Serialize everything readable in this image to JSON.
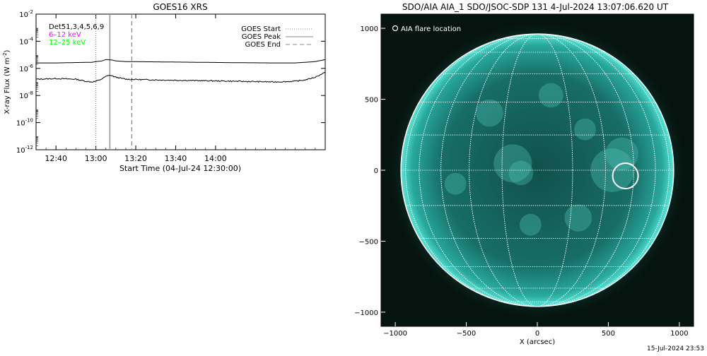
{
  "chart_data": [
    {
      "type": "line",
      "title": "GOES16 XRS",
      "xlabel": "Start Time (04-Jul-24 12:30:00)",
      "ylabel": "X-ray Flux (W m",
      "ylabel_sup": "-2",
      "ylabel_close": ")",
      "ylog": true,
      "ylim_exp": [
        -12,
        -2
      ],
      "yticks": [
        {
          "base": "10",
          "exp": "-2",
          "v": -2
        },
        {
          "base": "10",
          "exp": "-4",
          "v": -4
        },
        {
          "base": "10",
          "exp": "-6",
          "v": -6
        },
        {
          "base": "10",
          "exp": "-8",
          "v": -8
        },
        {
          "base": "10",
          "exp": "-10",
          "v": -10
        },
        {
          "base": "10",
          "exp": "-12",
          "v": -12
        }
      ],
      "xlim_minutes": [
        0,
        145
      ],
      "xticks": [
        {
          "label": "12:40",
          "m": 10
        },
        {
          "label": "13:00",
          "m": 30
        },
        {
          "label": "13:20",
          "m": 50
        },
        {
          "label": "13:40",
          "m": 70
        },
        {
          "label": "14:00",
          "m": 90
        }
      ],
      "legend_left": [
        {
          "text": "Det51,3,4,5,6,9",
          "color": "#000000"
        },
        {
          "text": "6–12 keV",
          "color": "#ff00ff"
        },
        {
          "text": "12–25 keV",
          "color": "#00ff00"
        }
      ],
      "legend_right": [
        {
          "text": "GOES Start",
          "style": "dotted",
          "m": 30
        },
        {
          "text": "GOES Peak",
          "style": "solid",
          "m": 37
        },
        {
          "text": "GOES End",
          "style": "dashed",
          "m": 48
        }
      ],
      "series": [
        {
          "band": "long",
          "t": [
            0,
            10,
            20,
            28,
            30,
            33,
            35,
            38,
            40,
            45,
            60,
            80,
            100,
            120,
            130,
            135,
            140,
            145
          ],
          "log_flux": [
            -5.6,
            -5.6,
            -5.57,
            -5.55,
            -5.5,
            -5.45,
            -5.35,
            -5.38,
            -5.45,
            -5.5,
            -5.52,
            -5.55,
            -5.58,
            -5.6,
            -5.6,
            -5.55,
            -5.5,
            -5.35
          ]
        },
        {
          "band": "short",
          "t": [
            0,
            10,
            20,
            25,
            28,
            30,
            32,
            35,
            37,
            40,
            45,
            60,
            80,
            100,
            120,
            130,
            135,
            140,
            145
          ],
          "log_flux": [
            -6.8,
            -6.75,
            -6.8,
            -6.95,
            -7.0,
            -6.95,
            -6.85,
            -6.6,
            -6.5,
            -6.65,
            -6.8,
            -6.85,
            -6.9,
            -6.95,
            -7.0,
            -6.95,
            -6.85,
            -6.65,
            -6.3
          ]
        }
      ]
    },
    {
      "type": "scatter",
      "title": "SDO/AIA AIA_1 SDO/JSOC-SDP 131  4-Jul-2024 13:07:06.620 UT",
      "xlabel": "X (arcsec)",
      "ylabel": "",
      "xlim": [
        -1100,
        1100
      ],
      "ylim": [
        -1100,
        1100
      ],
      "xticks": [
        -1000,
        -500,
        0,
        500,
        1000
      ],
      "yticks": [
        -1000,
        -500,
        0,
        500,
        1000
      ],
      "solar_radius_arcsec": 960,
      "grid_spacing_deg": 15,
      "legend": "AIA flare location",
      "flare": {
        "x": 620,
        "y": -40
      },
      "colors": {
        "disk": "#1f8d86",
        "limb": "#3fd2c4",
        "background": "#06140f",
        "grid": "#ffffff"
      }
    }
  ],
  "footer": {
    "timestamp": "15-Jul-2024 23:53"
  }
}
